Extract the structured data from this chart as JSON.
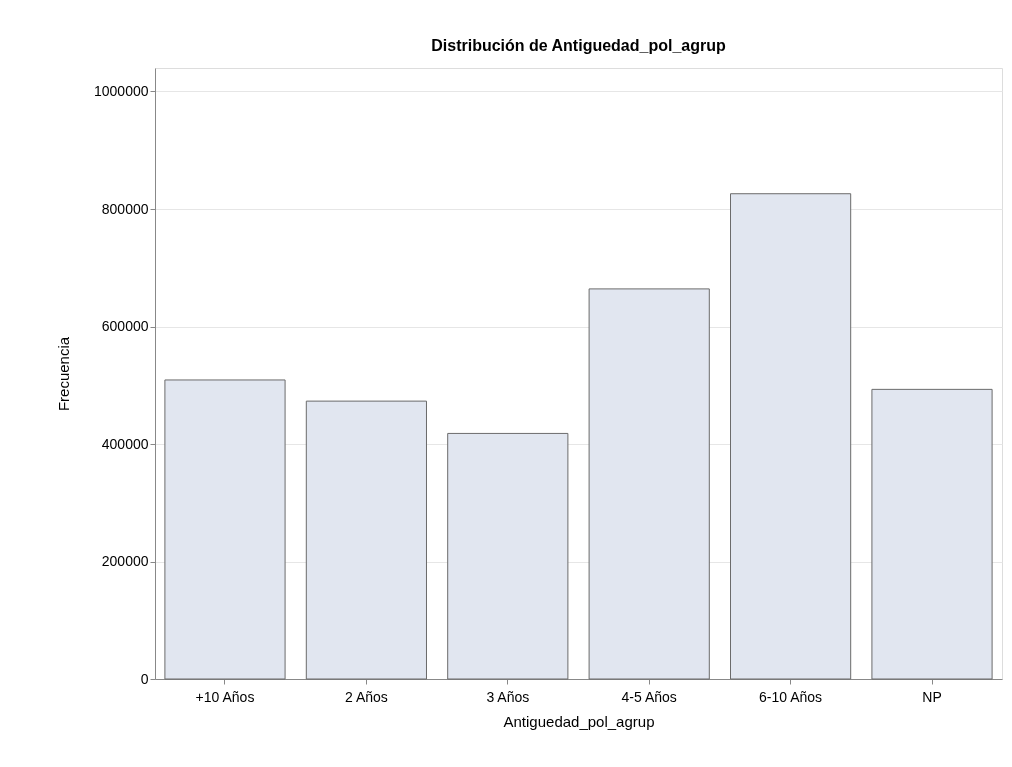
{
  "chart_data": {
    "type": "bar",
    "title": "Distribución de Antiguedad_pol_agrup",
    "xlabel": "Antiguedad_pol_agrup",
    "ylabel": "Frecuencia",
    "categories": [
      "+10 Años",
      "2 Años",
      "3 Años",
      "4-5 Años",
      "6-10 Años",
      "NP"
    ],
    "values": [
      509000,
      473000,
      418000,
      664000,
      826000,
      493000
    ],
    "color": "#e1e6f0",
    "ylim": [
      0,
      1040000
    ],
    "yticks": [
      0,
      200000,
      400000,
      600000,
      800000,
      1000000
    ],
    "grid": "y"
  }
}
